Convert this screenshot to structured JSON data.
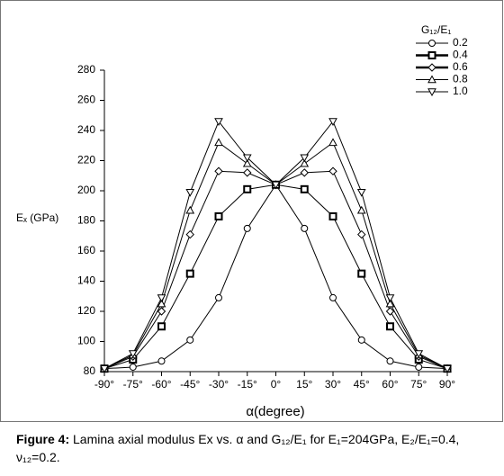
{
  "chart_data": {
    "type": "line",
    "xlabel": "α(degree)",
    "ylabel": "Eₓ (GPa)",
    "legend_title": "G₁₂/E₁",
    "legend_position": "upper right",
    "x": [
      -90,
      -75,
      -60,
      -45,
      -30,
      -15,
      0,
      15,
      30,
      45,
      60,
      75,
      90
    ],
    "xlim": [
      -90,
      90
    ],
    "xticks": [
      {
        "value": -90,
        "label": "-90°"
      },
      {
        "value": -75,
        "label": "-75°"
      },
      {
        "value": -60,
        "label": "-60°"
      },
      {
        "value": -45,
        "label": "-45°"
      },
      {
        "value": -30,
        "label": "-30°"
      },
      {
        "value": -15,
        "label": "-15°"
      },
      {
        "value": 0,
        "label": "0°"
      },
      {
        "value": 15,
        "label": "15°"
      },
      {
        "value": 30,
        "label": "30°"
      },
      {
        "value": 45,
        "label": "45°"
      },
      {
        "value": 60,
        "label": "60°"
      },
      {
        "value": 75,
        "label": "75°"
      },
      {
        "value": 90,
        "label": "90°"
      }
    ],
    "ylim": [
      80,
      280
    ],
    "yticks": [
      80,
      100,
      120,
      140,
      160,
      180,
      200,
      220,
      240,
      260,
      280
    ],
    "series": [
      {
        "name": "0.2",
        "color": "#000000",
        "marker": "circle",
        "values": [
          82,
          83,
          87,
          101,
          129,
          175,
          204,
          175,
          129,
          101,
          87,
          83,
          82
        ]
      },
      {
        "name": "0.4",
        "color": "#000000",
        "marker": "square",
        "values": [
          82,
          88,
          110,
          145,
          183,
          201,
          204,
          201,
          183,
          145,
          110,
          88,
          82
        ]
      },
      {
        "name": "0.6",
        "color": "#000000",
        "marker": "diamond",
        "values": [
          82,
          90,
          120,
          171,
          213,
          212,
          204,
          212,
          213,
          171,
          120,
          90,
          82
        ]
      },
      {
        "name": "0.8",
        "color": "#000000",
        "marker": "triangle-up",
        "values": [
          82,
          91,
          125,
          187,
          232,
          218,
          204,
          218,
          232,
          187,
          125,
          91,
          82
        ]
      },
      {
        "name": "1.0",
        "color": "#000000",
        "marker": "triangle-down",
        "values": [
          82,
          92,
          129,
          199,
          246,
          222,
          204,
          222,
          246,
          199,
          129,
          92,
          82
        ]
      }
    ]
  },
  "caption": {
    "label": "Figure 4:",
    "text": "Lamina axial modulus Ex vs. α and G₁₂/E₁ for E₁=204GPa, E₂/E₁=0.4, ν₁₂=0.2."
  }
}
